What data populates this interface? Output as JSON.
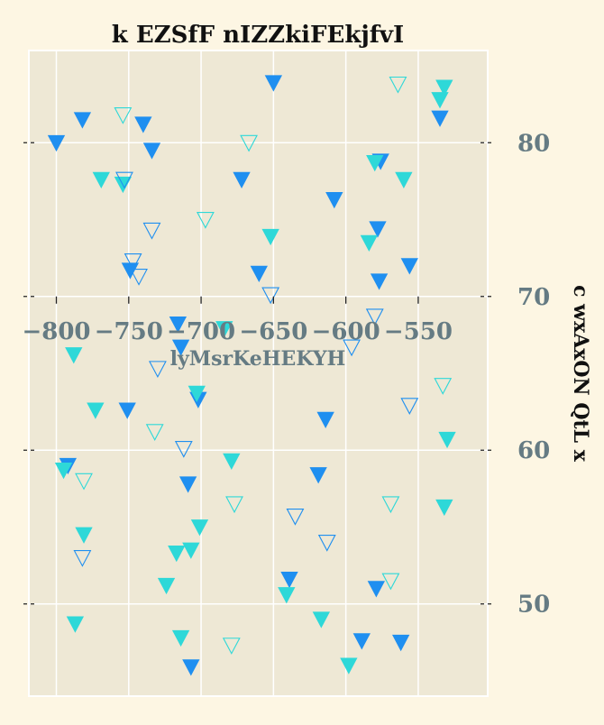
{
  "chart_data": {
    "type": "scatter",
    "title": "k EZSfF nIZZkiFEkjfvI",
    "xlabel": "lyMsrKeHEKYH",
    "ylabel": "c wxAxON QtL x",
    "xlim": [
      -819,
      -502
    ],
    "ylim": [
      44,
      86
    ],
    "x_ticks": [
      -800,
      -750,
      -700,
      -650,
      -600,
      -550
    ],
    "y_ticks": [
      50,
      60,
      70,
      80
    ],
    "x_tick_labels": [
      "−800",
      "−750",
      "−700",
      "−650",
      "−600",
      "−550"
    ],
    "y_tick_labels": [
      "50",
      "60",
      "70",
      "80"
    ],
    "grid": true,
    "marker": "triangle-down",
    "colors": {
      "background": "#fdf6e3",
      "plot_area": "#eee8d5",
      "grid": "#ffffff",
      "tick_text": "#657b83",
      "title": "#111111"
    },
    "series": [
      {
        "color": "#1f8ff0",
        "filled": true,
        "points": [
          [
            -800,
            80.0
          ],
          [
            -782,
            81.5
          ],
          [
            -749,
            71.7
          ],
          [
            -734,
            79.5
          ],
          [
            -740,
            81.2
          ],
          [
            -650,
            83.9
          ],
          [
            -660,
            71.5
          ],
          [
            -672,
            77.6
          ],
          [
            -608,
            76.3
          ],
          [
            -576,
            78.8
          ],
          [
            -578,
            74.4
          ],
          [
            -577,
            71.0
          ],
          [
            -556,
            72.0
          ],
          [
            -535,
            81.6
          ],
          [
            -792,
            59.0
          ],
          [
            -751,
            62.6
          ],
          [
            -716,
            68.2
          ],
          [
            -714,
            66.7
          ],
          [
            -702,
            63.3
          ],
          [
            -614,
            62.0
          ],
          [
            -709,
            57.8
          ],
          [
            -619,
            58.4
          ],
          [
            -639,
            51.6
          ],
          [
            -579,
            51.0
          ],
          [
            -589,
            47.6
          ],
          [
            -562,
            47.5
          ],
          [
            -707,
            45.9
          ]
        ]
      },
      {
        "color": "#2ed8d8",
        "filled": true,
        "points": [
          [
            -769,
            77.6
          ],
          [
            -754,
            77.3
          ],
          [
            -652,
            73.9
          ],
          [
            -584,
            73.5
          ],
          [
            -580,
            78.7
          ],
          [
            -560,
            77.6
          ],
          [
            -535,
            82.8
          ],
          [
            -532,
            83.6
          ],
          [
            -795,
            58.7
          ],
          [
            -788,
            66.2
          ],
          [
            -773,
            62.6
          ],
          [
            -781,
            54.5
          ],
          [
            -724,
            51.2
          ],
          [
            -717,
            53.3
          ],
          [
            -714,
            47.8
          ],
          [
            -701,
            55.0
          ],
          [
            -703,
            63.7
          ],
          [
            -707,
            53.5
          ],
          [
            -684,
            67.9
          ],
          [
            -679,
            59.3
          ],
          [
            -641,
            50.6
          ],
          [
            -617,
            49.0
          ],
          [
            -598,
            46.0
          ],
          [
            -530,
            60.7
          ],
          [
            -532,
            56.3
          ],
          [
            -787,
            48.7
          ]
        ]
      },
      {
        "color": "#1f8ff0",
        "filled": false,
        "points": [
          [
            -753,
            77.6
          ],
          [
            -747,
            72.3
          ],
          [
            -734,
            74.3
          ],
          [
            -743,
            71.3
          ],
          [
            -652,
            70.1
          ],
          [
            -635,
            55.7
          ],
          [
            -613,
            54.0
          ],
          [
            -596,
            66.7
          ],
          [
            -580,
            68.7
          ],
          [
            -556,
            62.9
          ],
          [
            -730,
            65.3
          ],
          [
            -712,
            60.1
          ],
          [
            -782,
            53.0
          ]
        ]
      },
      {
        "color": "#2ed8d8",
        "filled": false,
        "points": [
          [
            -754,
            81.8
          ],
          [
            -667,
            80.0
          ],
          [
            -697,
            75.0
          ],
          [
            -564,
            83.8
          ],
          [
            -781,
            58.0
          ],
          [
            -732,
            61.2
          ],
          [
            -677,
            56.5
          ],
          [
            -569,
            56.5
          ],
          [
            -569,
            51.5
          ],
          [
            -679,
            47.3
          ],
          [
            -533,
            64.2
          ]
        ]
      }
    ]
  }
}
